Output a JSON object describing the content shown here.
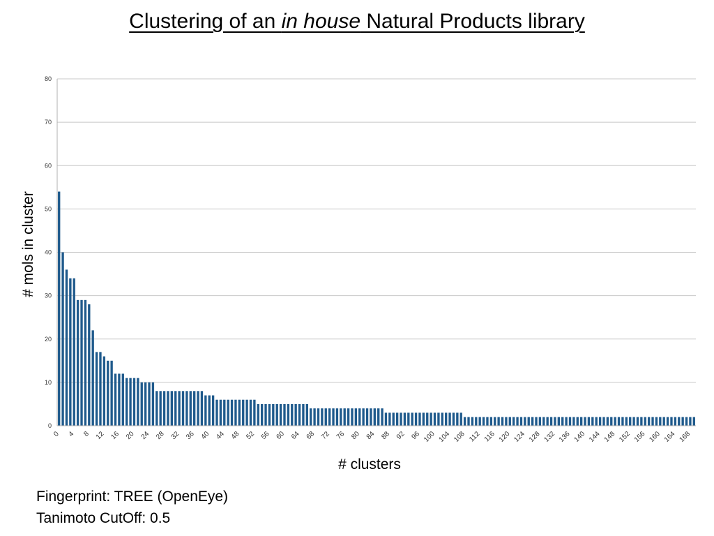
{
  "slide": {
    "title_part1": "Clustering of an ",
    "title_italic": "in house",
    "title_part2": " Natural Products library",
    "footnote_1": "Fingerprint: TREE (OpenEye)",
    "footnote_2": "Tanimoto CutOff: 0.5"
  },
  "chart_data": {
    "type": "bar",
    "title": "",
    "xlabel": "# clusters",
    "ylabel": "# mols in cluster",
    "ylim": [
      0,
      80
    ],
    "yticks": [
      0,
      10,
      20,
      30,
      40,
      50,
      60,
      70,
      80
    ],
    "grid": true,
    "bar_color": "#1f5a8c",
    "x_tick_step": 4,
    "x_start": 0,
    "values": [
      54,
      40,
      36,
      34,
      34,
      29,
      29,
      29,
      28,
      22,
      17,
      17,
      16,
      15,
      15,
      12,
      12,
      12,
      11,
      11,
      11,
      11,
      10,
      10,
      10,
      10,
      8,
      8,
      8,
      8,
      8,
      8,
      8,
      8,
      8,
      8,
      8,
      8,
      8,
      7,
      7,
      7,
      6,
      6,
      6,
      6,
      6,
      6,
      6,
      6,
      6,
      6,
      6,
      5,
      5,
      5,
      5,
      5,
      5,
      5,
      5,
      5,
      5,
      5,
      5,
      5,
      5,
      4,
      4,
      4,
      4,
      4,
      4,
      4,
      4,
      4,
      4,
      4,
      4,
      4,
      4,
      4,
      4,
      4,
      4,
      4,
      4,
      3,
      3,
      3,
      3,
      3,
      3,
      3,
      3,
      3,
      3,
      3,
      3,
      3,
      3,
      3,
      3,
      3,
      3,
      3,
      3,
      3,
      2,
      2,
      2,
      2,
      2,
      2,
      2,
      2,
      2,
      2,
      2,
      2,
      2,
      2,
      2,
      2,
      2,
      2,
      2,
      2,
      2,
      2,
      2,
      2,
      2,
      2,
      2,
      2,
      2,
      2,
      2,
      2,
      2,
      2,
      2,
      2,
      2,
      2,
      2,
      2,
      2,
      2,
      2,
      2,
      2,
      2,
      2,
      2,
      2,
      2,
      2,
      2,
      2,
      2,
      2,
      2,
      2,
      2,
      2,
      2,
      2,
      2
    ]
  }
}
